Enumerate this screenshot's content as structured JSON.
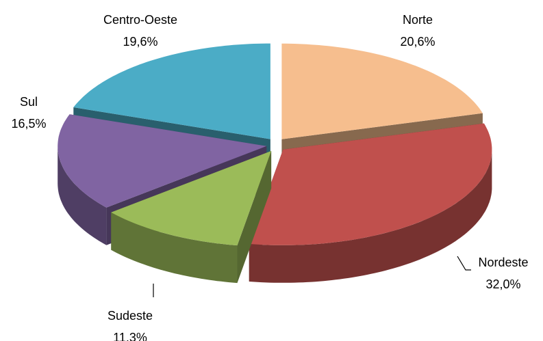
{
  "chart_data": {
    "type": "pie",
    "categories": [
      "Norte",
      "Nordeste",
      "Sudeste",
      "Sul",
      "Centro-Oeste"
    ],
    "values": [
      20.6,
      32.0,
      11.3,
      16.5,
      19.6
    ],
    "value_labels": [
      "20,6%",
      "32,0%",
      "11,3%",
      "16,5%",
      "19,6%"
    ],
    "colors": [
      "#f6be8e",
      "#c0504d",
      "#9bbb59",
      "#8064a2",
      "#4bacc6"
    ]
  }
}
